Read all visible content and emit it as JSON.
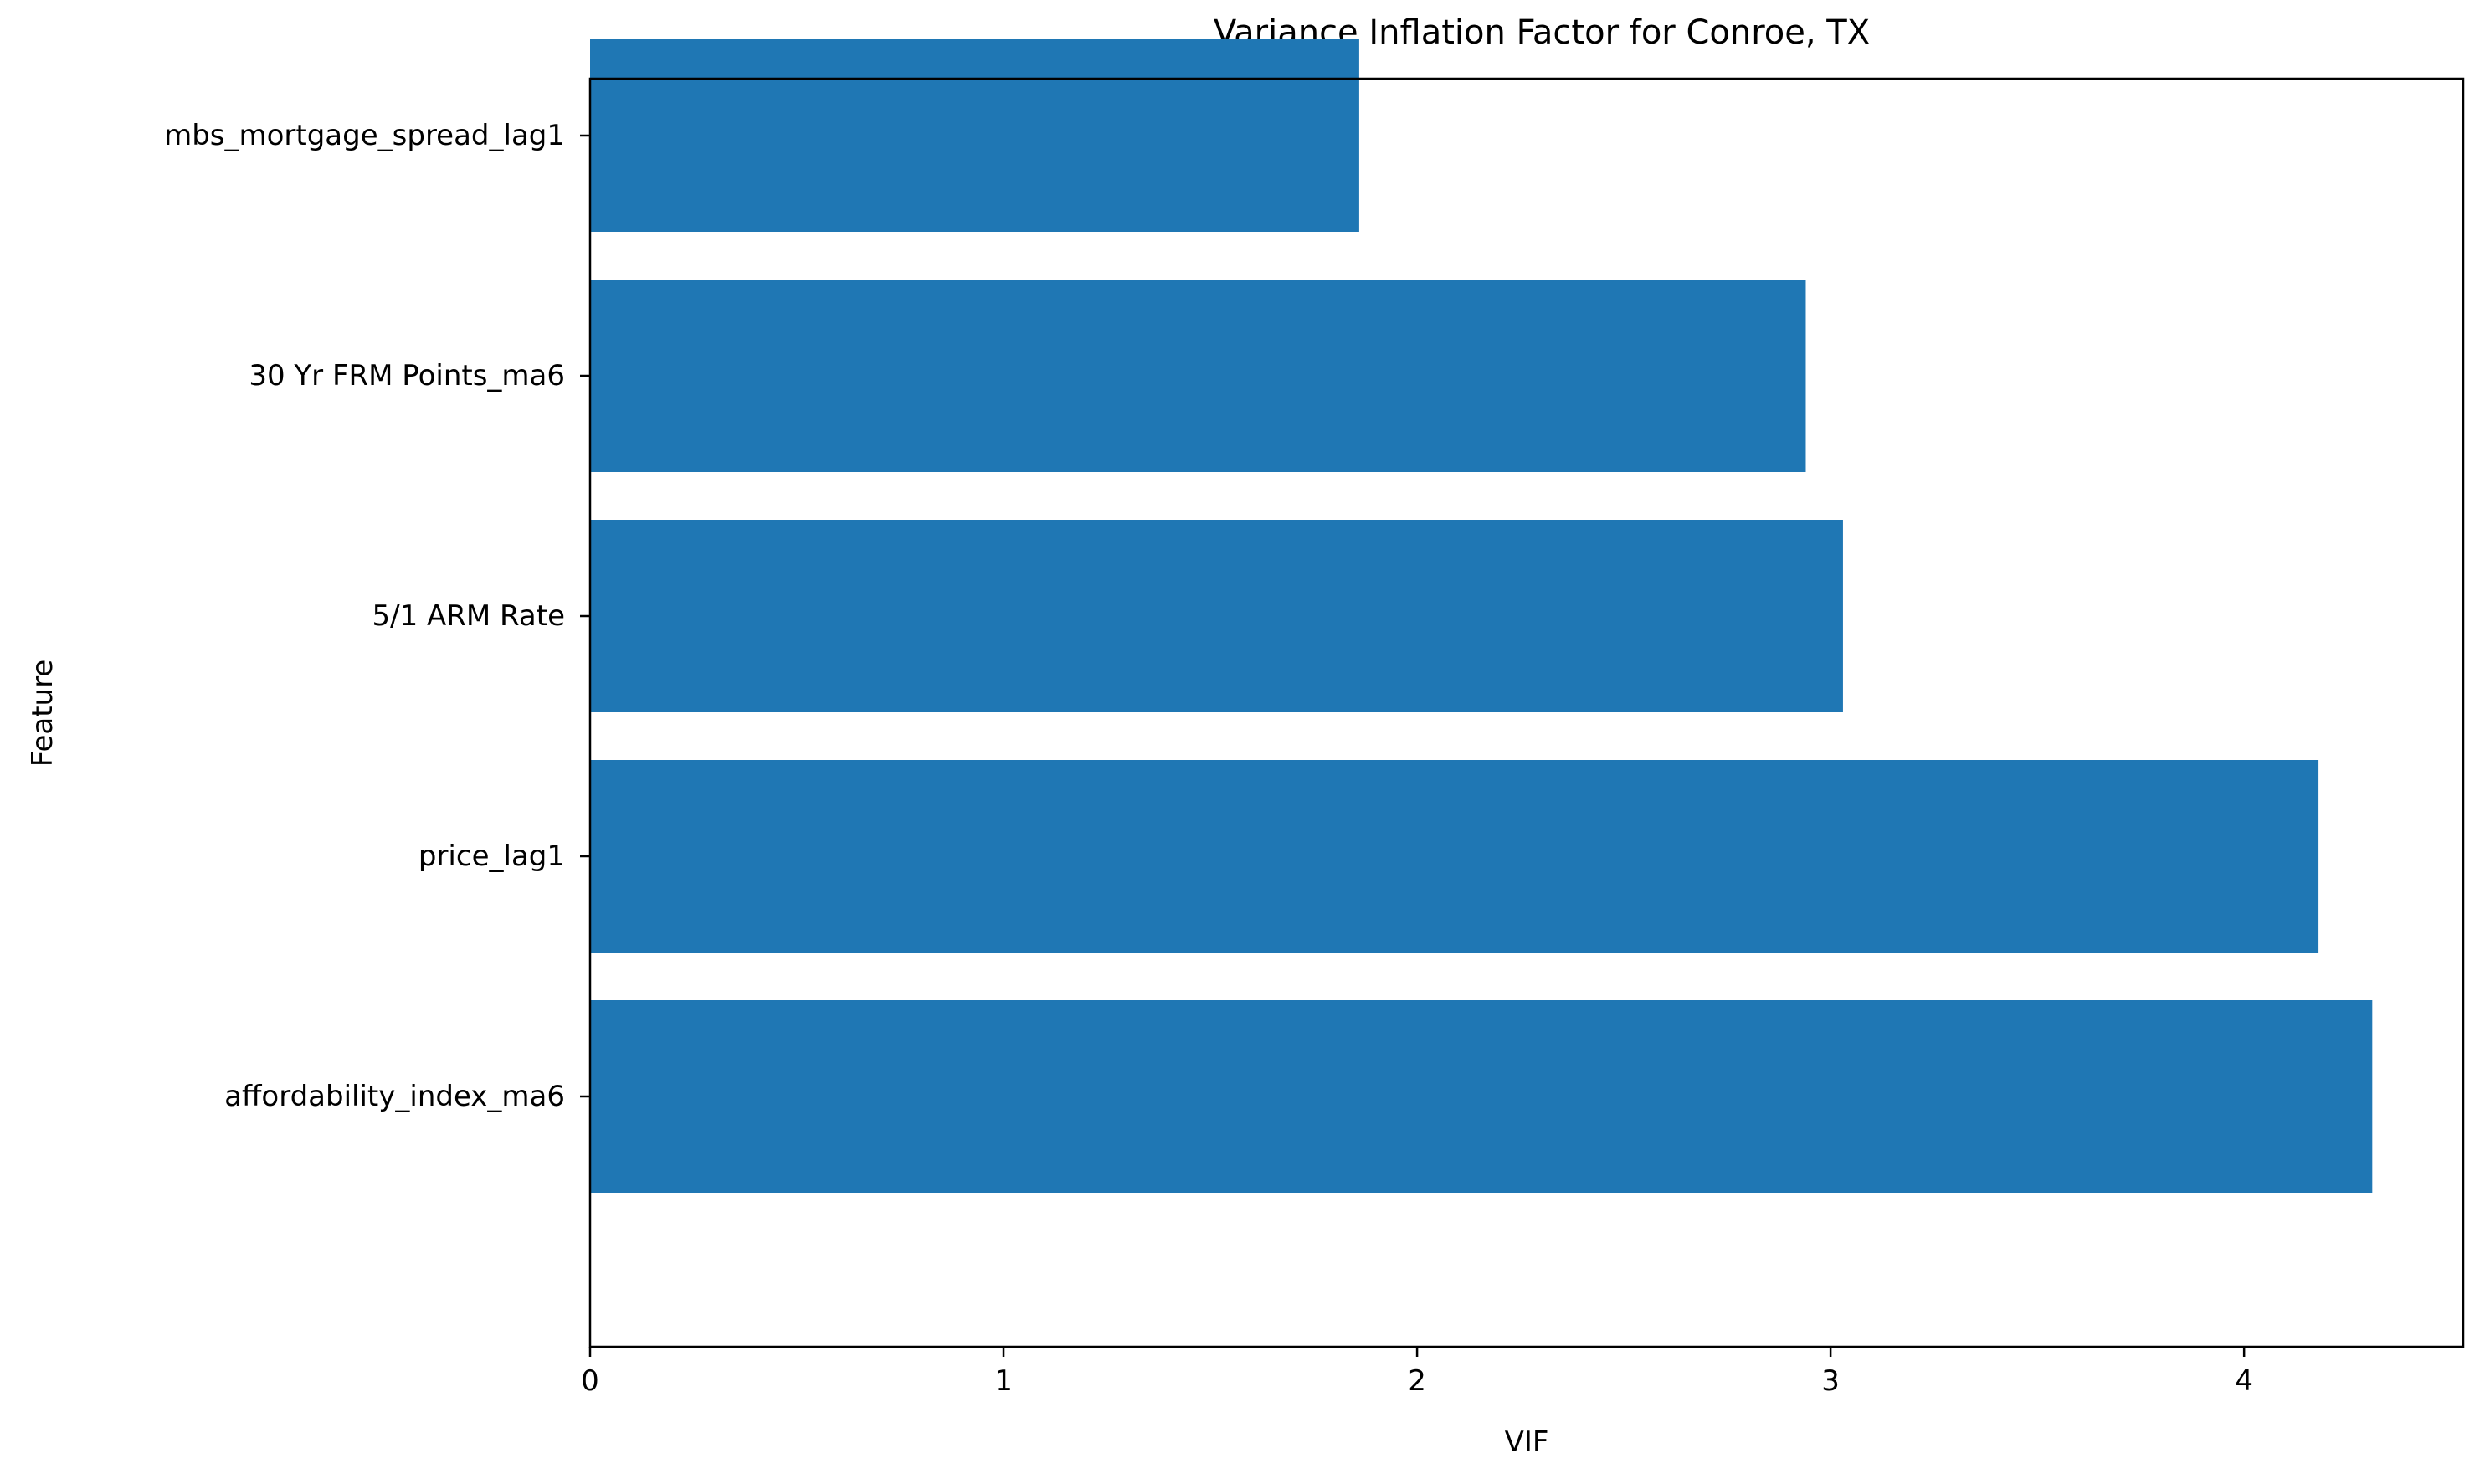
{
  "chart_data": {
    "type": "bar",
    "orientation": "horizontal",
    "title": "Variance Inflation Factor for Conroe, TX",
    "xlabel": "VIF",
    "ylabel": "Feature",
    "categories": [
      "affordability_index_ma6",
      "price_lag1",
      "5/1 ARM Rate",
      "30 Yr FRM Points_ma6",
      "mbs_mortgage_spread_lag1"
    ],
    "values": [
      4.31,
      4.18,
      3.03,
      2.94,
      1.86
    ],
    "xlim": [
      0,
      4.53
    ],
    "xticks": [
      0,
      1,
      2,
      3,
      4
    ],
    "bar_color": "#1f77b4",
    "grid": false,
    "legend": "none"
  }
}
